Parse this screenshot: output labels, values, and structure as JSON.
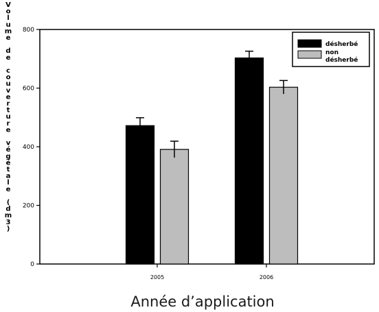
{
  "chart_data": {
    "type": "bar",
    "title": "",
    "xlabel": "Année d’application",
    "ylabel": "Volume de couverture végétale (dm3)",
    "categories": [
      "2005",
      "2006"
    ],
    "series": [
      {
        "name": "désherbé",
        "values": [
          472,
          703
        ],
        "errors": [
          27,
          23
        ],
        "color": "#000000"
      },
      {
        "name": "non désherbé",
        "values": [
          391,
          603
        ],
        "errors": [
          28,
          23
        ],
        "color": "#bdbdbd"
      }
    ],
    "ylim": [
      0,
      800
    ],
    "yticks": [
      0,
      200,
      400,
      600,
      800
    ],
    "legend_position": "top-right",
    "grid": false
  }
}
